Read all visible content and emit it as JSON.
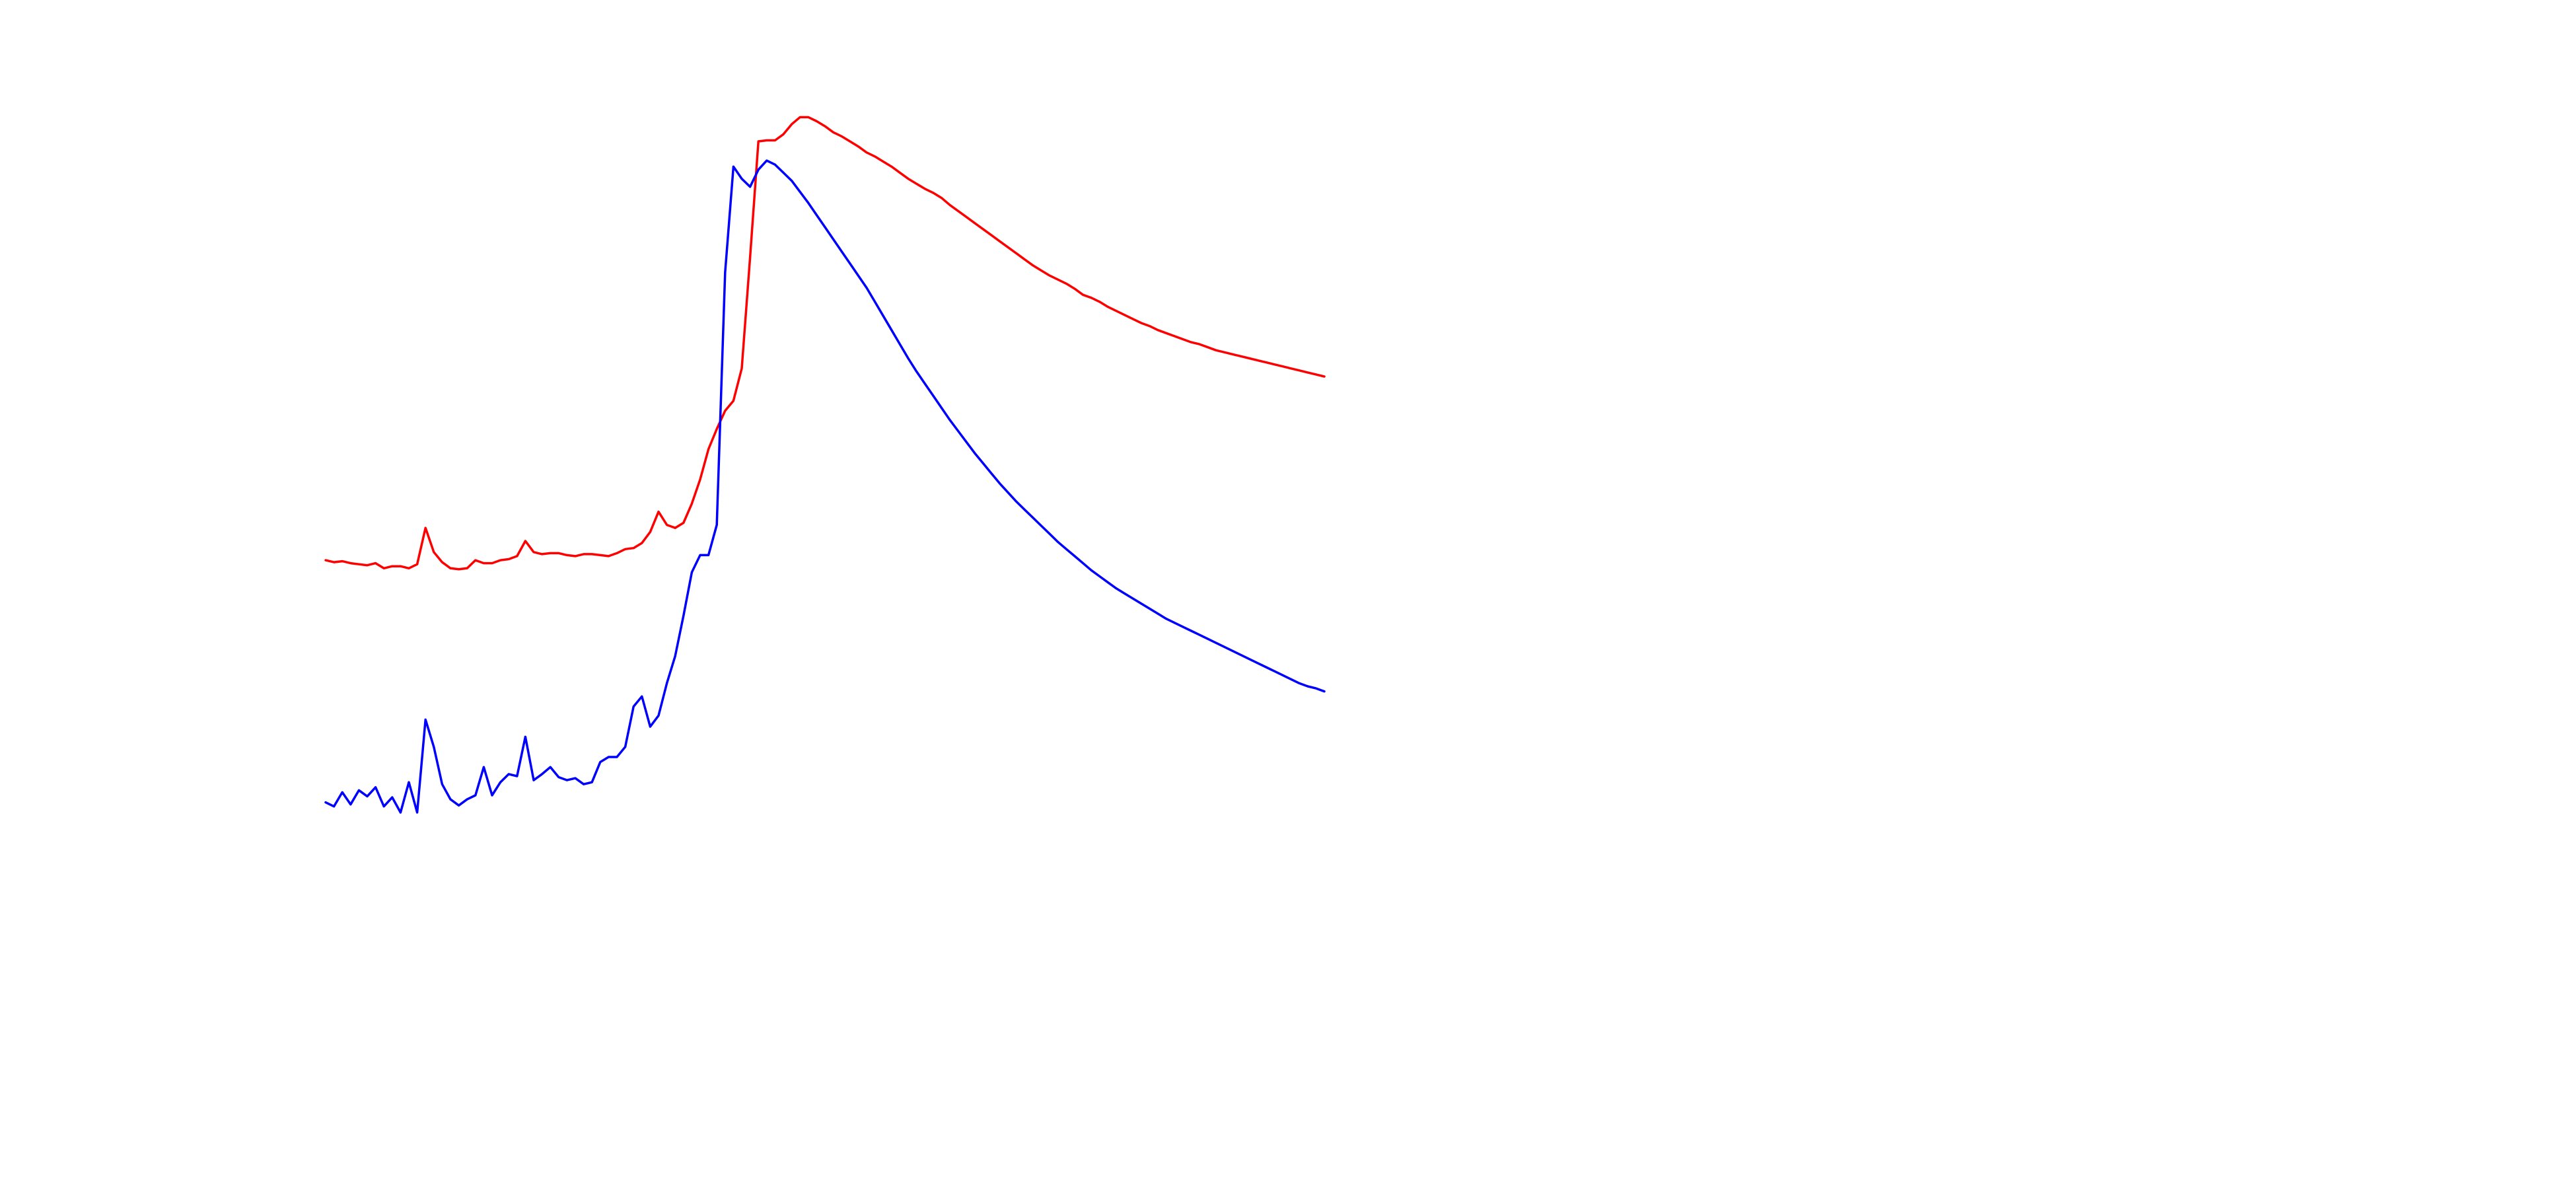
{
  "chart_data": {
    "type": "line",
    "title": "",
    "xlabel": "",
    "ylabel": "",
    "grid": false,
    "legend": "none",
    "xlim": [
      0,
      120
    ],
    "ylim": [
      0,
      9
    ],
    "series": [
      {
        "color": "#ff0000",
        "x": [
          0,
          1,
          2,
          3,
          4,
          5,
          6,
          7,
          8,
          9,
          10,
          11,
          12,
          13,
          14,
          15,
          16,
          17,
          18,
          19,
          20,
          21,
          22,
          23,
          24,
          25,
          26,
          27,
          28,
          29,
          30,
          31,
          32,
          33,
          34,
          35,
          36,
          37,
          38,
          39,
          40,
          41,
          42,
          43,
          44,
          45,
          46,
          47,
          48,
          49,
          50,
          51,
          52,
          53,
          54,
          55,
          56,
          57,
          58,
          59,
          60,
          61,
          62,
          63,
          64,
          65,
          66,
          67,
          68,
          69,
          70,
          71,
          72,
          73,
          74,
          75,
          76,
          77,
          78,
          79,
          80,
          81,
          82,
          83,
          84,
          85,
          86,
          87,
          88,
          89,
          90,
          91,
          92,
          93,
          94,
          95,
          96,
          97,
          98,
          99,
          100,
          101,
          102,
          103,
          104,
          105,
          106,
          107,
          108,
          109,
          110,
          111,
          112,
          113,
          114,
          115,
          116,
          117,
          118,
          119,
          120
        ],
        "values": [
          4.3,
          4.28,
          4.29,
          4.27,
          4.26,
          4.25,
          4.27,
          4.22,
          4.24,
          4.24,
          4.22,
          4.26,
          4.62,
          4.38,
          4.28,
          4.22,
          4.21,
          4.22,
          4.3,
          4.27,
          4.27,
          4.3,
          4.31,
          4.34,
          4.49,
          4.38,
          4.36,
          4.37,
          4.37,
          4.35,
          4.34,
          4.36,
          4.36,
          4.35,
          4.34,
          4.37,
          4.41,
          4.42,
          4.47,
          4.58,
          4.78,
          4.65,
          4.62,
          4.67,
          4.86,
          5.1,
          5.4,
          5.6,
          5.78,
          5.88,
          6.2,
          7.3,
          8.45,
          8.46,
          8.46,
          8.52,
          8.62,
          8.69,
          8.69,
          8.65,
          8.6,
          8.54,
          8.5,
          8.45,
          8.4,
          8.34,
          8.3,
          8.25,
          8.2,
          8.14,
          8.08,
          8.03,
          7.98,
          7.94,
          7.89,
          7.82,
          7.76,
          7.7,
          7.64,
          7.58,
          7.52,
          7.46,
          7.4,
          7.34,
          7.28,
          7.22,
          7.17,
          7.12,
          7.08,
          7.04,
          6.99,
          6.93,
          6.9,
          6.86,
          6.81,
          6.77,
          6.73,
          6.69,
          6.65,
          6.62,
          6.58,
          6.55,
          6.52,
          6.49,
          6.46,
          6.44,
          6.41,
          6.38,
          6.36,
          6.34,
          6.32,
          6.3,
          6.28,
          6.26,
          6.24,
          6.22,
          6.2,
          6.18,
          6.16,
          6.14,
          6.12
        ]
      },
      {
        "color": "#0000ff",
        "x": [
          0,
          1,
          2,
          3,
          4,
          5,
          6,
          7,
          8,
          9,
          10,
          11,
          12,
          13,
          14,
          15,
          16,
          17,
          18,
          19,
          20,
          21,
          22,
          23,
          24,
          25,
          26,
          27,
          28,
          29,
          30,
          31,
          32,
          33,
          34,
          35,
          36,
          37,
          38,
          39,
          40,
          41,
          42,
          43,
          44,
          45,
          46,
          47,
          48,
          49,
          50,
          51,
          52,
          53,
          54,
          55,
          56,
          57,
          58,
          59,
          60,
          61,
          62,
          63,
          64,
          65,
          66,
          67,
          68,
          69,
          70,
          71,
          72,
          73,
          74,
          75,
          76,
          77,
          78,
          79,
          80,
          81,
          82,
          83,
          84,
          85,
          86,
          87,
          88,
          89,
          90,
          91,
          92,
          93,
          94,
          95,
          96,
          97,
          98,
          99,
          100,
          101,
          102,
          103,
          104,
          105,
          106,
          107,
          108,
          109,
          110,
          111,
          112,
          113,
          114,
          115,
          116,
          117,
          118,
          119,
          120
        ],
        "values": [
          1.9,
          1.86,
          2.0,
          1.88,
          2.02,
          1.96,
          2.05,
          1.86,
          1.95,
          1.8,
          2.1,
          1.8,
          2.72,
          2.45,
          2.08,
          1.93,
          1.87,
          1.93,
          1.97,
          2.25,
          1.97,
          2.1,
          2.18,
          2.16,
          2.55,
          2.12,
          2.18,
          2.25,
          2.15,
          2.12,
          2.14,
          2.08,
          2.1,
          2.3,
          2.35,
          2.35,
          2.45,
          2.85,
          2.95,
          2.65,
          2.76,
          3.08,
          3.35,
          3.75,
          4.18,
          4.35,
          4.35,
          4.65,
          7.15,
          8.2,
          8.08,
          8.0,
          8.17,
          8.26,
          8.22,
          8.14,
          8.06,
          7.95,
          7.84,
          7.72,
          7.6,
          7.48,
          7.36,
          7.24,
          7.12,
          7.0,
          6.86,
          6.72,
          6.58,
          6.44,
          6.3,
          6.17,
          6.05,
          5.93,
          5.81,
          5.69,
          5.58,
          5.47,
          5.36,
          5.26,
          5.16,
          5.06,
          4.97,
          4.88,
          4.8,
          4.72,
          4.64,
          4.56,
          4.48,
          4.41,
          4.34,
          4.27,
          4.2,
          4.14,
          4.08,
          4.02,
          3.97,
          3.92,
          3.87,
          3.82,
          3.77,
          3.72,
          3.68,
          3.64,
          3.6,
          3.56,
          3.52,
          3.48,
          3.44,
          3.4,
          3.36,
          3.32,
          3.28,
          3.24,
          3.2,
          3.16,
          3.12,
          3.08,
          3.05,
          3.03,
          3.0
        ]
      }
    ]
  }
}
